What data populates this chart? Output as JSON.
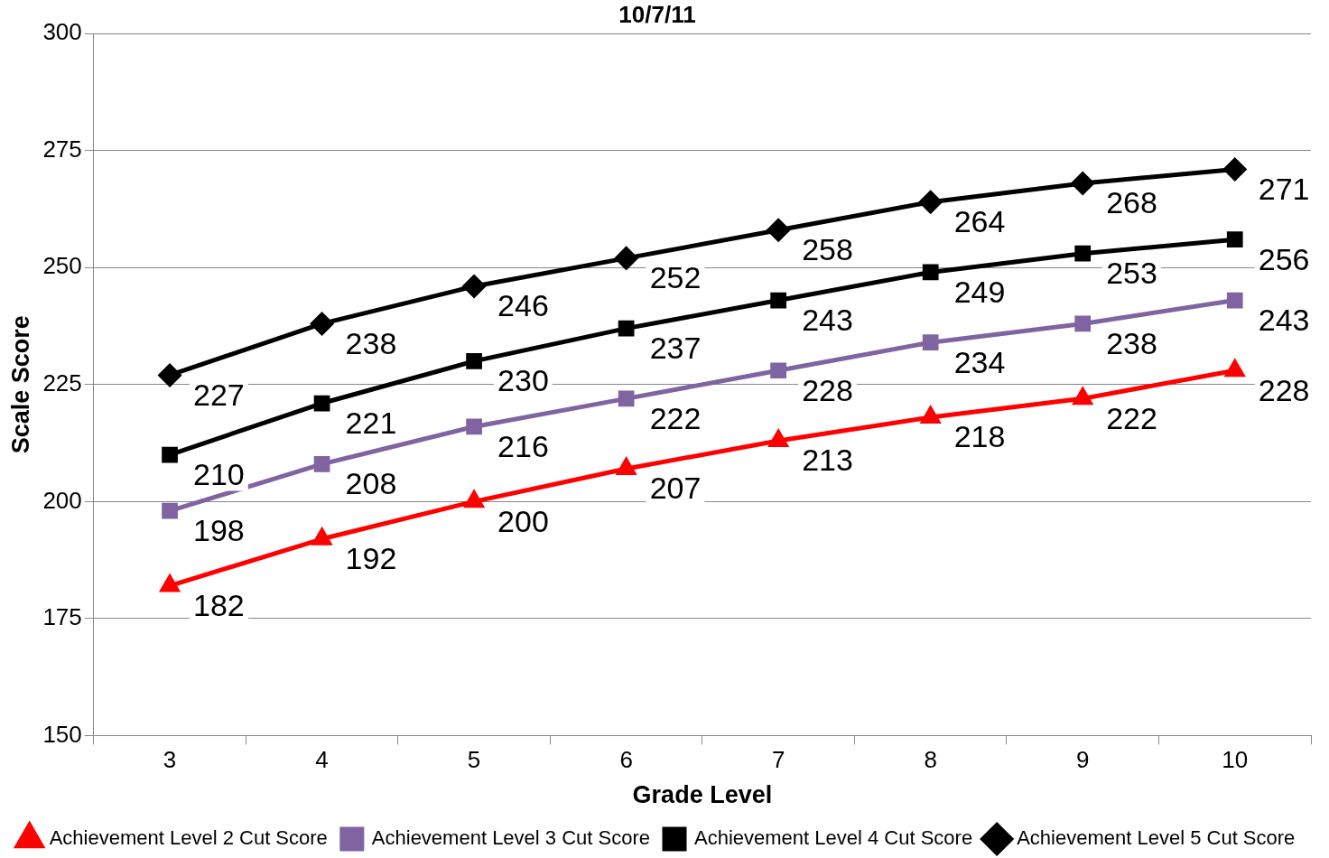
{
  "chart_data": {
    "type": "line",
    "title": "10/7/11",
    "xlabel": "Grade Level",
    "ylabel": "Scale Score",
    "categories": [
      "3",
      "4",
      "5",
      "6",
      "7",
      "8",
      "9",
      "10"
    ],
    "series": [
      {
        "name": "Achievement Level 2 Cut Score",
        "color": "#ff0000",
        "marker": "triangle",
        "values": [
          182,
          192,
          200,
          207,
          213,
          218,
          222,
          228
        ]
      },
      {
        "name": "Achievement Level 3 Cut Score",
        "color": "#8064a2",
        "marker": "square",
        "values": [
          198,
          208,
          216,
          222,
          228,
          234,
          238,
          243
        ]
      },
      {
        "name": "Achievement Level 4 Cut Score",
        "color": "#000000",
        "marker": "square",
        "values": [
          210,
          221,
          230,
          237,
          243,
          249,
          253,
          256
        ]
      },
      {
        "name": "Achievement Level 5 Cut Score",
        "color": "#000000",
        "marker": "diamond",
        "values": [
          227,
          238,
          246,
          252,
          258,
          264,
          268,
          271
        ]
      }
    ],
    "ylim": [
      150,
      300
    ],
    "yticks": [
      150,
      175,
      200,
      225,
      250,
      275,
      300
    ],
    "grid": "y",
    "legend": "bottom",
    "data_labels": true
  }
}
